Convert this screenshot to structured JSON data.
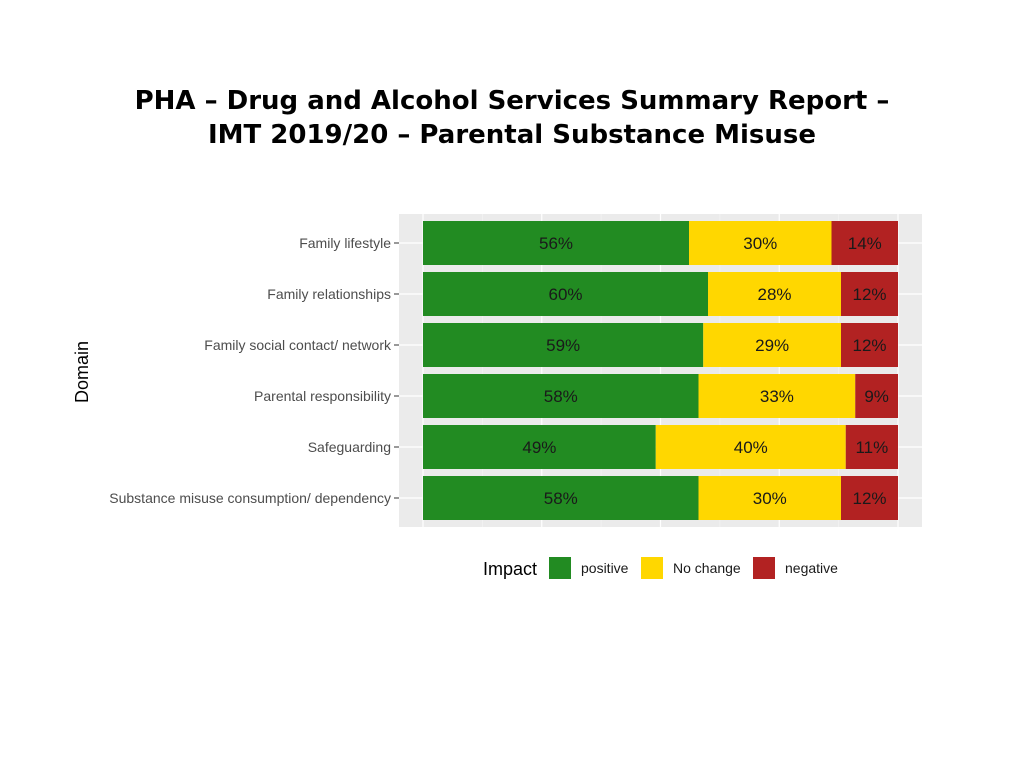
{
  "title": {
    "line1": "PHA – Drug and Alcohol Services Summary Report –",
    "line2": "IMT 2019/20 – Parental Substance Misuse"
  },
  "chart_data": {
    "type": "bar",
    "orientation": "horizontal",
    "stacked": true,
    "ylabel": "Domain",
    "legend_title": "Impact",
    "legend_position": "bottom",
    "categories": [
      "Family lifestyle",
      "Family relationships",
      "Family social contact/ network",
      "Parental responsibility",
      "Safeguarding",
      "Substance misuse consumption/ dependency"
    ],
    "series": [
      {
        "name": "positive",
        "color": "#228b22",
        "values": [
          56,
          60,
          59,
          58,
          49,
          58
        ]
      },
      {
        "name": "No change",
        "color": "#ffd700",
        "values": [
          30,
          28,
          29,
          33,
          40,
          30
        ]
      },
      {
        "name": "negative",
        "color": "#b22222",
        "values": [
          14,
          12,
          12,
          9,
          11,
          12
        ]
      }
    ],
    "xlim": [
      0,
      100
    ],
    "grid": true
  }
}
